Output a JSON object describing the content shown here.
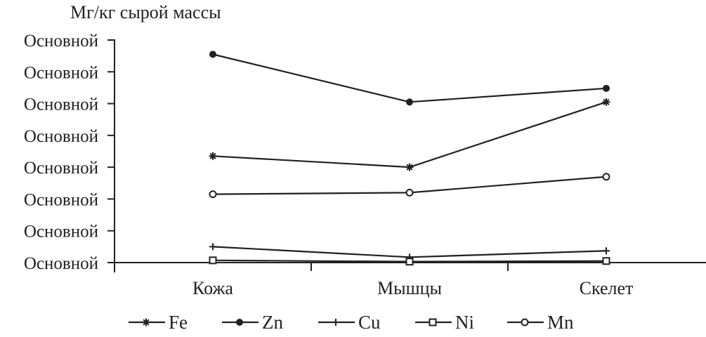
{
  "chart_data": {
    "type": "line",
    "ylabel": "Мг/кг сырой массы",
    "categories": [
      "Кожа",
      "Мышцы",
      "Скелет"
    ],
    "y_tick_labels": [
      "Основной",
      "Основной",
      "Основной",
      "Основной",
      "Основной",
      "Основной",
      "Основной",
      "Основной"
    ],
    "ylim": [
      0,
      7
    ],
    "grid": false,
    "legend_position": "bottom",
    "series": [
      {
        "name": "Fe",
        "marker": "asterisk",
        "values": [
          3.35,
          3.0,
          5.05
        ]
      },
      {
        "name": "Zn",
        "marker": "filled-circle",
        "values": [
          6.55,
          5.05,
          5.48
        ]
      },
      {
        "name": "Cu",
        "marker": "plus",
        "values": [
          0.5,
          0.17,
          0.37
        ]
      },
      {
        "name": "Ni",
        "marker": "open-square",
        "values": [
          0.07,
          0.03,
          0.05
        ]
      },
      {
        "name": "Mn",
        "marker": "open-circle",
        "values": [
          2.15,
          2.2,
          2.7
        ]
      }
    ],
    "colors": {
      "ink": "#231f20",
      "background": "#ffffff"
    }
  }
}
